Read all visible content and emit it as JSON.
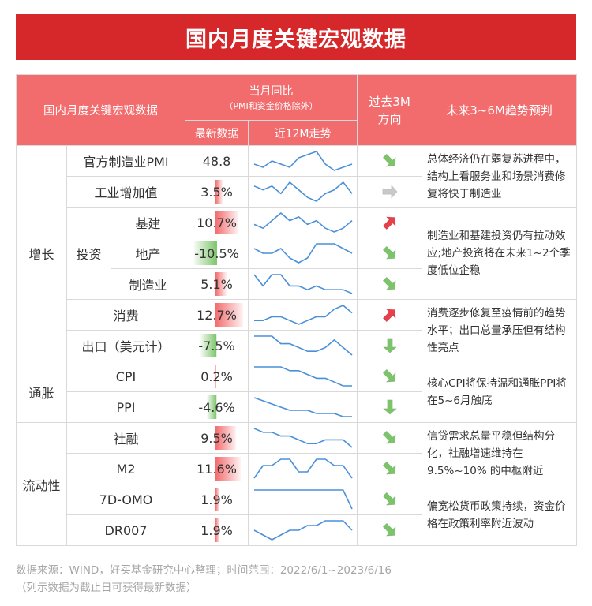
{
  "title": "国内月度关键宏观数据",
  "header": {
    "col_indicator": "国内月度关键宏观数据",
    "yoy_group": "当月同比",
    "yoy_note": "（PMI和资金价格除外）",
    "latest": "最新数据",
    "trend12m": "近12M走势",
    "past3m_l1": "过去3M",
    "past3m_l2": "方向",
    "forecast": "未来3~6M趋势预判"
  },
  "categories": {
    "growth": "增长",
    "investment": "投资",
    "inflation": "通胀",
    "liquidity": "流动性"
  },
  "rows": [
    {
      "name": "官方制造业PMI",
      "value": "48.8",
      "dir": "down-right",
      "spark": [
        3,
        2,
        4,
        3,
        2,
        5,
        6,
        7,
        3,
        1,
        2,
        3
      ]
    },
    {
      "name": "工业增加值",
      "value": "3.5%",
      "dir": "right",
      "spark": [
        5,
        4,
        5,
        3,
        6,
        4,
        2,
        1,
        3,
        4,
        6,
        3
      ]
    },
    {
      "name": "基建",
      "value": "10.7%",
      "dir": "up-right",
      "spark": [
        3,
        2,
        4,
        6,
        4,
        5,
        3,
        4,
        2,
        1,
        2,
        4
      ]
    },
    {
      "name": "地产",
      "value": "-10.5%",
      "dir": "down-right",
      "spark": [
        5,
        4,
        4,
        5,
        3,
        2,
        3,
        6,
        6,
        6,
        5,
        4
      ]
    },
    {
      "name": "制造业",
      "value": "5.1%",
      "dir": "down-right",
      "spark": [
        6,
        3,
        6,
        6,
        3,
        3,
        2,
        3,
        2,
        2,
        2,
        1
      ]
    },
    {
      "name": "消费",
      "value": "12.7%",
      "dir": "up-right",
      "spark": [
        3,
        3,
        4,
        4,
        3,
        2,
        3,
        4,
        4,
        6,
        7,
        5
      ]
    },
    {
      "name": "出口（美元计）",
      "value": "-7.5%",
      "dir": "down",
      "spark": [
        6,
        6,
        6,
        4,
        4,
        3,
        2,
        2,
        3,
        5,
        3,
        1
      ]
    },
    {
      "name": "CPI",
      "value": "0.2%",
      "dir": "down-right",
      "spark": [
        7,
        7,
        7,
        7,
        6,
        6,
        5,
        4,
        4,
        3,
        2,
        2
      ]
    },
    {
      "name": "PPI",
      "value": "-4.6%",
      "dir": "down",
      "spark": [
        7,
        6,
        5,
        4,
        3,
        3,
        3,
        2,
        2,
        2,
        1,
        1
      ]
    },
    {
      "name": "社融",
      "value": "9.5%",
      "dir": "down-right",
      "spark": [
        6,
        5,
        5,
        4,
        4,
        3,
        2,
        2,
        3,
        3,
        3,
        1
      ]
    },
    {
      "name": "M2",
      "value": "11.6%",
      "dir": "down-right",
      "spark": [
        2,
        4,
        4,
        5,
        5,
        3,
        3,
        5,
        5,
        4,
        4,
        2
      ]
    },
    {
      "name": "7D-OMO",
      "value": "1.9%",
      "dir": "down-right",
      "spark": [
        5,
        5,
        5,
        5,
        5,
        5,
        5,
        5,
        5,
        5,
        5,
        1
      ]
    },
    {
      "name": "DR007",
      "value": "1.9%",
      "dir": "down-right",
      "spark": [
        3,
        2,
        1,
        2,
        3,
        3,
        4,
        4,
        5,
        5,
        5,
        3
      ]
    }
  ],
  "forecasts": {
    "f1": "总体经济仍在弱复苏进程中，结构上看服务业和场景消费修复将快于制造业",
    "f2": "制造业和基建投资仍有拉动效应;地产投资将在未来1~2个季度低位企稳",
    "f3": "消费逐步修复至疫情前的趋势水平；出口总量承压但有结构性亮点",
    "f4": "核心CPI将保持温和通胀PPI将在5~6月触底",
    "f5": "信贷需求总量平稳但结构分化，社融增速维持在9.5%~10% 的中枢附近",
    "f6": "偏宽松货币政策持续，资金价格在政策利率附近波动"
  },
  "colors": {
    "banner": "#d6282b",
    "header": "#f26b6d",
    "spark": "#4a90d9",
    "up_arrow": "#e8404a",
    "down_arrow": "#7cc46a",
    "flat_arrow": "#c8c8c8"
  },
  "footer": {
    "line1": "数据来源：WIND，好买基金研究中心整理；时间范围：2022/6/1~2023/6/16",
    "line2": "（列示数据为截止日可获得最新数据）"
  }
}
